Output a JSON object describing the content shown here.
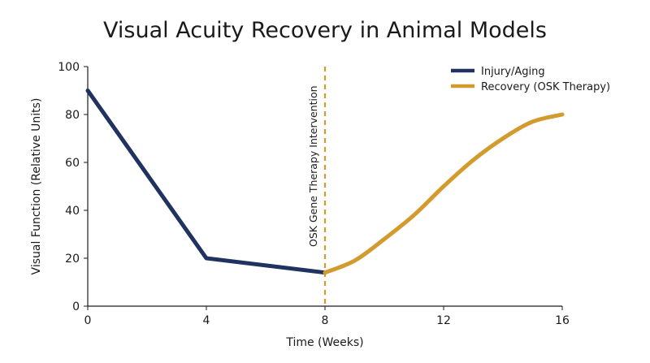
{
  "chart_data": {
    "type": "line",
    "title": "Visual Acuity Recovery in Animal Models",
    "xlabel": "Time (Weeks)",
    "ylabel": "Visual Function (Relative Units)",
    "xlim": [
      0,
      16
    ],
    "ylim": [
      0,
      100
    ],
    "xticks": [
      0,
      4,
      8,
      12,
      16
    ],
    "yticks": [
      0,
      20,
      40,
      60,
      80,
      100
    ],
    "grid": false,
    "legend_position": "top-right",
    "series": [
      {
        "name": "Injury/Aging",
        "color": "#1f3260",
        "smooth": false,
        "x": [
          0,
          4,
          8
        ],
        "y": [
          90,
          20,
          14
        ]
      },
      {
        "name": "Recovery (OSK Therapy)",
        "color": "#d39a2e",
        "smooth": true,
        "x": [
          8,
          9,
          10,
          11,
          12,
          13,
          14,
          15,
          16
        ],
        "y": [
          14,
          19,
          28,
          38,
          50,
          61,
          70,
          77,
          80
        ]
      }
    ],
    "annotations": [
      {
        "type": "vline",
        "x": 8,
        "text": "OSK Gene Therapy Intervention",
        "color": "#d39a2e",
        "style": "dashed"
      }
    ]
  }
}
